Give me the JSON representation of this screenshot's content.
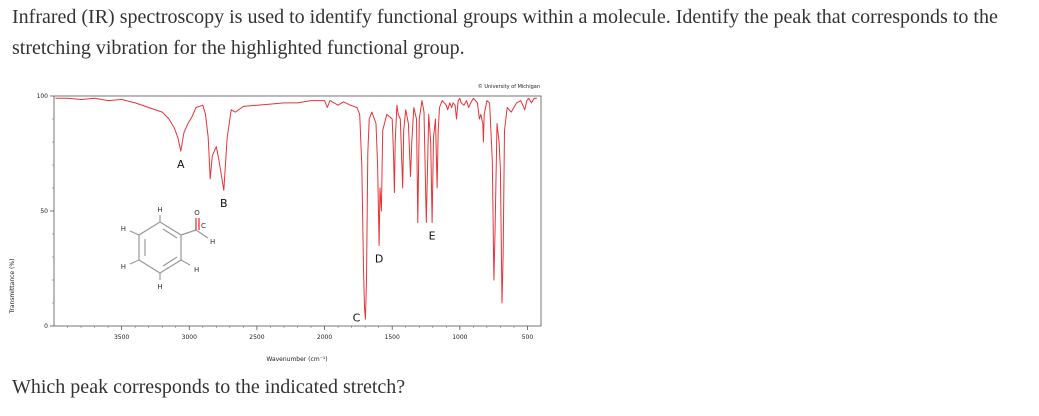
{
  "question": {
    "text": "Infrared (IR) spectroscopy is used to identify functional groups within a molecule. Identify the peak that corresponds to the stretching vibration for the highlighted functional group.",
    "prompt": "Which peak corresponds to the indicated stretch?"
  },
  "chart_data": {
    "type": "line",
    "title": "",
    "credit": "© University of Michigan",
    "xlabel": "Wavenumber (cm⁻¹)",
    "ylabel": "Transmittance (%)",
    "xlim": [
      4000,
      400
    ],
    "ylim": [
      0,
      100
    ],
    "x_ticks": [
      {
        "value": 3500,
        "label": "3500"
      },
      {
        "value": 3000,
        "label": "3000"
      },
      {
        "value": 2500,
        "label": "2500"
      },
      {
        "value": 2000,
        "label": "2000"
      },
      {
        "value": 1500,
        "label": "1500"
      },
      {
        "value": 1000,
        "label": "1000"
      },
      {
        "value": 500,
        "label": "500"
      }
    ],
    "y_ticks": [
      {
        "value": 100,
        "label": "100"
      },
      {
        "value": 50,
        "label": "50"
      },
      {
        "value": 0,
        "label": "0"
      }
    ],
    "series": [
      {
        "color": "#e8333a",
        "points": [
          [
            3990,
            99
          ],
          [
            3900,
            99
          ],
          [
            3800,
            98.5
          ],
          [
            3700,
            99
          ],
          [
            3600,
            98
          ],
          [
            3500,
            98.5
          ],
          [
            3400,
            97
          ],
          [
            3300,
            95
          ],
          [
            3200,
            93
          ],
          [
            3150,
            90
          ],
          [
            3110,
            86
          ],
          [
            3085,
            82
          ],
          [
            3063,
            76
          ],
          [
            3040,
            84
          ],
          [
            3010,
            88
          ],
          [
            2980,
            91
          ],
          [
            2950,
            95
          ],
          [
            2900,
            96
          ],
          [
            2880,
            92
          ],
          [
            2860,
            82
          ],
          [
            2845,
            64
          ],
          [
            2830,
            74
          ],
          [
            2800,
            78
          ],
          [
            2780,
            72
          ],
          [
            2745,
            59
          ],
          [
            2720,
            82
          ],
          [
            2690,
            94
          ],
          [
            2660,
            93
          ],
          [
            2600,
            95.5
          ],
          [
            2500,
            96
          ],
          [
            2400,
            96.5
          ],
          [
            2300,
            97
          ],
          [
            2200,
            97
          ],
          [
            2100,
            98
          ],
          [
            2000,
            98
          ],
          [
            1980,
            95
          ],
          [
            1960,
            98
          ],
          [
            1900,
            96
          ],
          [
            1860,
            97.5
          ],
          [
            1810,
            96
          ],
          [
            1760,
            95
          ],
          [
            1740,
            92
          ],
          [
            1725,
            70
          ],
          [
            1712,
            25
          ],
          [
            1705,
            8
          ],
          [
            1698,
            3
          ],
          [
            1690,
            20
          ],
          [
            1680,
            75
          ],
          [
            1670,
            90
          ],
          [
            1650,
            93
          ],
          [
            1620,
            88
          ],
          [
            1608,
            70
          ],
          [
            1597,
            35
          ],
          [
            1590,
            60
          ],
          [
            1580,
            50
          ],
          [
            1570,
            85
          ],
          [
            1540,
            92
          ],
          [
            1500,
            90
          ],
          [
            1490,
            75
          ],
          [
            1484,
            58
          ],
          [
            1478,
            80
          ],
          [
            1465,
            96
          ],
          [
            1455,
            92
          ],
          [
            1440,
            90
          ],
          [
            1422,
            60
          ],
          [
            1415,
            85
          ],
          [
            1400,
            94
          ],
          [
            1380,
            88
          ],
          [
            1365,
            65
          ],
          [
            1355,
            80
          ],
          [
            1340,
            95
          ],
          [
            1320,
            90
          ],
          [
            1311,
            45
          ],
          [
            1300,
            90
          ],
          [
            1280,
            98
          ],
          [
            1265,
            93
          ],
          [
            1248,
            45
          ],
          [
            1238,
            70
          ],
          [
            1230,
            92
          ],
          [
            1215,
            80
          ],
          [
            1205,
            45
          ],
          [
            1195,
            82
          ],
          [
            1180,
            90
          ],
          [
            1168,
            60
          ],
          [
            1160,
            85
          ],
          [
            1150,
            95
          ],
          [
            1130,
            98
          ],
          [
            1100,
            96
          ],
          [
            1090,
            94
          ],
          [
            1075,
            97
          ],
          [
            1060,
            95
          ],
          [
            1050,
            97
          ],
          [
            1035,
            96
          ],
          [
            1025,
            90
          ],
          [
            1012,
            98
          ],
          [
            1000,
            99
          ],
          [
            990,
            97
          ],
          [
            970,
            96
          ],
          [
            950,
            98
          ],
          [
            935,
            95
          ],
          [
            920,
            97
          ],
          [
            900,
            99
          ],
          [
            870,
            97
          ],
          [
            855,
            90
          ],
          [
            845,
            92
          ],
          [
            830,
            88
          ],
          [
            826,
            80
          ],
          [
            820,
            92
          ],
          [
            800,
            98
          ],
          [
            780,
            97
          ],
          [
            760,
            72
          ],
          [
            748,
            20
          ],
          [
            740,
            40
          ],
          [
            725,
            88
          ],
          [
            710,
            80
          ],
          [
            700,
            68
          ],
          [
            688,
            10
          ],
          [
            680,
            30
          ],
          [
            670,
            85
          ],
          [
            650,
            95
          ],
          [
            620,
            93
          ],
          [
            600,
            95
          ],
          [
            580,
            97
          ],
          [
            550,
            98
          ],
          [
            520,
            94
          ],
          [
            505,
            98
          ],
          [
            490,
            99
          ],
          [
            470,
            97
          ],
          [
            450,
            99
          ],
          [
            430,
            99
          ]
        ]
      }
    ],
    "peak_labels": [
      {
        "label": "A",
        "x": 3063,
        "y": 73
      },
      {
        "label": "B",
        "x": 2745,
        "y": 56
      },
      {
        "label": "C",
        "x": 1698,
        "y": 1
      },
      {
        "label": "D",
        "x": 1597,
        "y": 32
      },
      {
        "label": "E",
        "x": 1205,
        "y": 42
      }
    ],
    "structure": {
      "atoms": [
        "H",
        "H",
        "H",
        "H",
        "H",
        "O",
        "C",
        "H"
      ]
    }
  }
}
